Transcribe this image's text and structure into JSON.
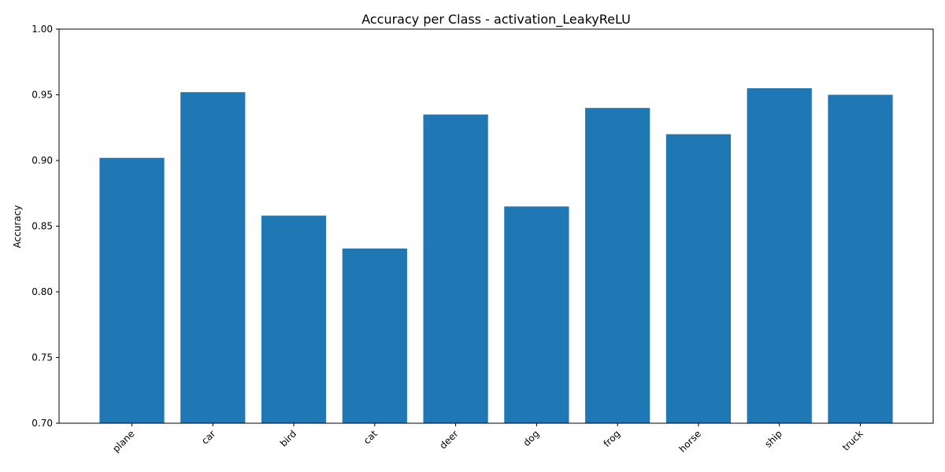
{
  "chart_data": {
    "type": "bar",
    "title": "Accuracy per Class - activation_LeakyReLU",
    "xlabel": "",
    "ylabel": "Accuracy",
    "categories": [
      "plane",
      "car",
      "bird",
      "cat",
      "deer",
      "dog",
      "frog",
      "horse",
      "ship",
      "truck"
    ],
    "values": [
      0.902,
      0.952,
      0.858,
      0.833,
      0.935,
      0.865,
      0.94,
      0.92,
      0.955,
      0.95
    ],
    "ylim": [
      0.7,
      1.0
    ],
    "yticks": [
      "0.70",
      "0.75",
      "0.80",
      "0.85",
      "0.90",
      "0.95",
      "1.00"
    ],
    "grid": false,
    "bar_color": "#1f77b4"
  }
}
